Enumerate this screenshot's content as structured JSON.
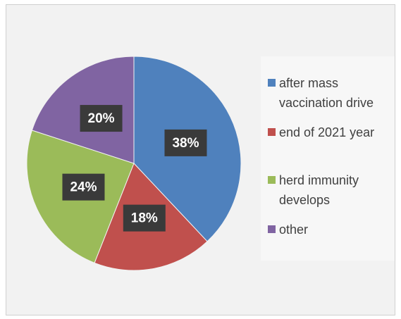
{
  "chart_data": {
    "type": "pie",
    "categories": [
      "after mass vaccination drive",
      "end of 2021 year",
      "herd immunity develops",
      "other"
    ],
    "values": [
      38,
      18,
      24,
      20
    ],
    "value_labels": [
      "38%",
      "18%",
      "24%",
      "20%"
    ],
    "colors": [
      "#4f81bd",
      "#c0504d",
      "#9bbb59",
      "#8064a2"
    ],
    "legend": "right"
  }
}
